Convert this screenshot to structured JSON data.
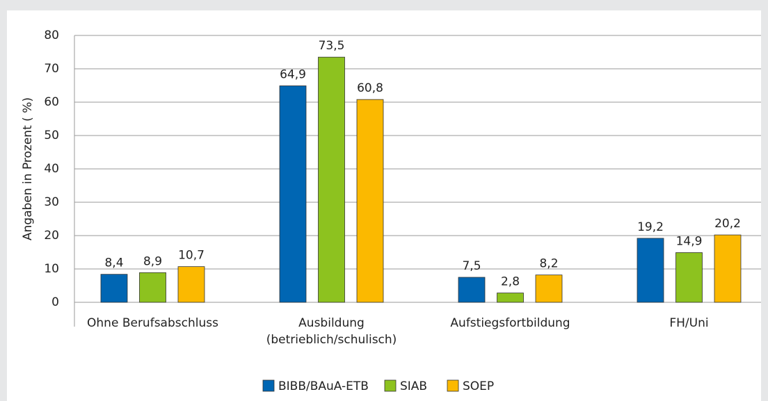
{
  "chart_data": {
    "type": "bar",
    "y_label": "Angaben in Prozent ( %)",
    "categories": [
      "Ohne Berufsabschluss",
      "Ausbildung\n(betrieblich/schulisch)",
      "Aufstiegsfortbildung",
      "FH/Uni"
    ],
    "series": [
      {
        "name": "BIBB/BAuA-ETB",
        "color": "#0066b3",
        "values": [
          8.4,
          64.9,
          7.5,
          19.2
        ],
        "value_labels": [
          "8,4",
          "64,9",
          "7,5",
          "19,2"
        ]
      },
      {
        "name": "SIAB",
        "color": "#8dc21f",
        "values": [
          8.9,
          73.5,
          2.8,
          14.9
        ],
        "value_labels": [
          "8,9",
          "73,5",
          "2,8",
          "14,9"
        ]
      },
      {
        "name": "SOEP",
        "color": "#fbb900",
        "values": [
          10.7,
          60.8,
          8.2,
          20.2
        ],
        "value_labels": [
          "10,7",
          "60,8",
          "8,2",
          "20,2"
        ]
      }
    ],
    "ylim": [
      0,
      80
    ],
    "yticks": [
      0,
      10,
      20,
      30,
      40,
      50,
      60,
      70,
      80
    ],
    "grid": true,
    "legend": "bottom"
  }
}
